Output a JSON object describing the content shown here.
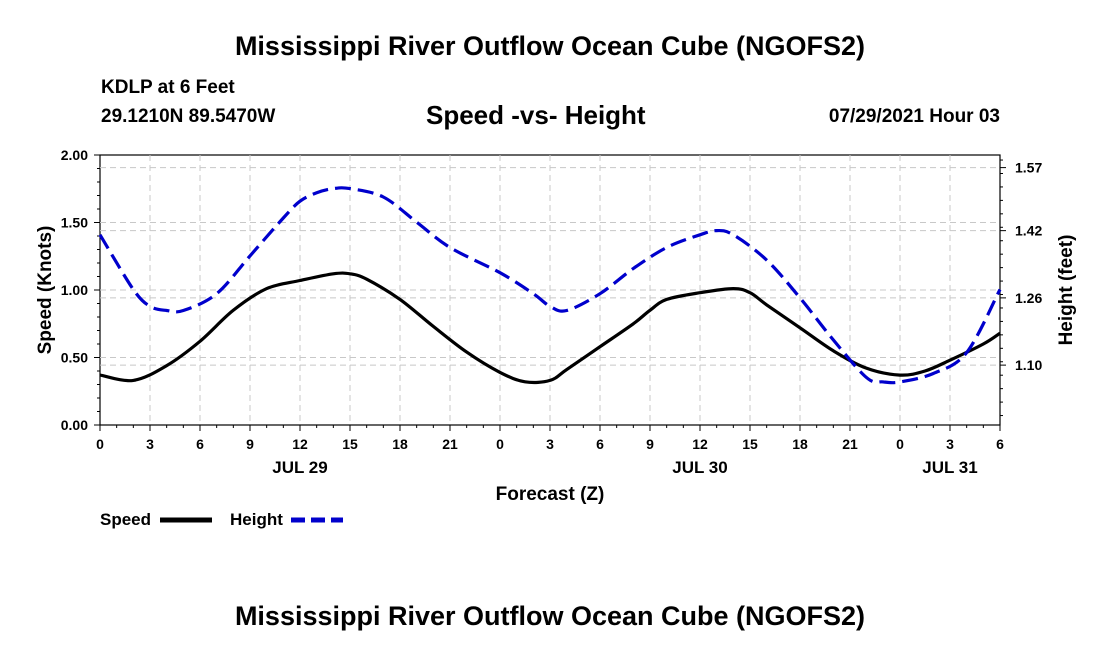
{
  "header": {
    "title": "Mississippi River Outflow Ocean Cube (NGOFS2)",
    "station": "KDLP at 6 Feet",
    "coords": "29.1210N  89.5470W",
    "chart_title": "Speed -vs- Height",
    "datetime": "07/29/2021 Hour 03"
  },
  "footer": {
    "title": "Mississippi River Outflow Ocean Cube (NGOFS2)"
  },
  "legend": {
    "speed_label": "Speed",
    "height_label": "Height"
  },
  "chart_data": {
    "type": "line",
    "title": "Speed -vs- Height",
    "xlabel": "Forecast (Z)",
    "ylabel": "Speed (Knots)",
    "y2label": "Height (feet)",
    "xlim": [
      0,
      54
    ],
    "ylim": [
      0,
      2.0
    ],
    "y2lim": [
      0.9575,
      1.6
    ],
    "xticks": [
      0,
      3,
      6,
      9,
      12,
      15,
      18,
      21,
      24,
      27,
      30,
      33,
      36,
      39,
      42,
      45,
      48,
      51,
      54
    ],
    "xtick_labels": [
      "0",
      "3",
      "6",
      "9",
      "12",
      "15",
      "18",
      "21",
      "0",
      "3",
      "6",
      "9",
      "12",
      "15",
      "18",
      "21",
      "0",
      "3",
      "6"
    ],
    "yticks": [
      0.0,
      0.5,
      1.0,
      1.5,
      2.0
    ],
    "ytick_labels": [
      "0.00",
      "0.50",
      "1.00",
      "1.50",
      "2.00"
    ],
    "y2ticks": [
      1.1,
      1.26,
      1.42,
      1.57
    ],
    "y2tick_labels": [
      "1.10",
      "1.26",
      "1.42",
      "1.57"
    ],
    "date_labels": [
      {
        "x": 12,
        "text": "JUL 29"
      },
      {
        "x": 36,
        "text": "JUL 30"
      },
      {
        "x": 51,
        "text": "JUL 31"
      }
    ],
    "grid": true,
    "legend_position": "bottom-left",
    "series": [
      {
        "name": "Speed",
        "axis": "left",
        "color": "#000000",
        "style": "solid",
        "x": [
          0,
          2,
          4,
          6,
          8,
          10,
          12,
          14,
          15,
          16,
          18,
          20,
          22,
          24,
          25.5,
          27,
          28,
          30,
          32,
          33,
          34,
          36,
          38,
          39,
          40,
          42,
          44,
          46,
          48,
          49.5,
          51,
          53,
          54
        ],
        "y": [
          0.37,
          0.33,
          0.44,
          0.62,
          0.85,
          1.01,
          1.07,
          1.12,
          1.12,
          1.08,
          0.93,
          0.73,
          0.54,
          0.39,
          0.32,
          0.33,
          0.41,
          0.58,
          0.75,
          0.85,
          0.93,
          0.98,
          1.01,
          0.98,
          0.89,
          0.72,
          0.55,
          0.42,
          0.37,
          0.4,
          0.48,
          0.6,
          0.68
        ]
      },
      {
        "name": "Height",
        "axis": "right",
        "color": "#0000cc",
        "style": "dashed",
        "x": [
          0,
          2,
          3,
          4,
          5,
          7,
          9,
          11,
          12,
          13,
          14,
          15,
          17,
          19,
          21,
          24,
          26,
          27,
          28,
          30,
          32,
          34,
          36,
          37,
          38,
          40,
          42,
          44,
          46,
          47,
          48,
          50,
          52,
          54
        ],
        "y": [
          1.41,
          1.28,
          1.24,
          1.23,
          1.23,
          1.27,
          1.36,
          1.45,
          1.49,
          1.51,
          1.52,
          1.52,
          1.5,
          1.44,
          1.38,
          1.32,
          1.27,
          1.24,
          1.23,
          1.27,
          1.33,
          1.38,
          1.41,
          1.42,
          1.41,
          1.35,
          1.26,
          1.16,
          1.07,
          1.06,
          1.06,
          1.08,
          1.13,
          1.28
        ]
      }
    ]
  }
}
